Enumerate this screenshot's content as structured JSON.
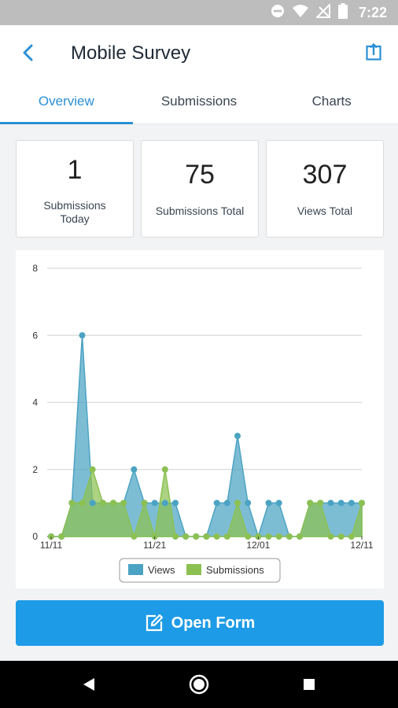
{
  "status_bar": {
    "time": "7:22",
    "icons": [
      "do-not-disturb-icon",
      "wifi-icon",
      "no-signal-icon",
      "battery-icon"
    ]
  },
  "app_bar": {
    "title": "Mobile Survey",
    "back_icon": "chevron-left-icon",
    "share_icon": "share-upload-icon"
  },
  "tabs": [
    {
      "label": "Overview",
      "active": true
    },
    {
      "label": "Submissions",
      "active": false
    },
    {
      "label": "Charts",
      "active": false
    }
  ],
  "stats": [
    {
      "value": "1",
      "label_lines": [
        "Submissions",
        "Today"
      ]
    },
    {
      "value": "75",
      "label_lines": [
        "Submissions Total"
      ]
    },
    {
      "value": "307",
      "label_lines": [
        "Views Total"
      ]
    }
  ],
  "chart_data": {
    "type": "area",
    "x_count": 31,
    "x_tick_labels": [
      {
        "index": 0,
        "label": "11/11"
      },
      {
        "index": 10,
        "label": "11/21"
      },
      {
        "index": 20,
        "label": "12/01"
      },
      {
        "index": 30,
        "label": "12/11"
      }
    ],
    "y_ticks": [
      0,
      2,
      4,
      6,
      8
    ],
    "ylim": [
      0,
      8
    ],
    "grid": true,
    "legend_position": "bottom",
    "series": [
      {
        "name": "Views",
        "color": "#4ba3c3",
        "values": [
          0,
          0,
          1,
          6,
          1,
          1,
          1,
          1,
          2,
          1,
          1,
          1,
          1,
          0,
          0,
          0,
          1,
          1,
          3,
          1,
          0,
          1,
          1,
          0,
          0,
          1,
          1,
          1,
          1,
          1,
          1
        ]
      },
      {
        "name": "Submissions",
        "color": "#8cc152",
        "values": [
          0,
          0,
          1,
          1,
          2,
          1,
          1,
          1,
          0,
          1,
          0,
          2,
          0,
          0,
          0,
          0,
          0,
          0,
          1,
          0,
          0,
          0,
          0,
          0,
          0,
          1,
          1,
          0,
          0,
          0,
          1
        ]
      }
    ]
  },
  "open_form": {
    "label": "Open Form",
    "icon": "edit-icon"
  },
  "nav_bar": {
    "icons": [
      "back-triangle-icon",
      "home-circle-icon",
      "recents-square-icon"
    ]
  }
}
